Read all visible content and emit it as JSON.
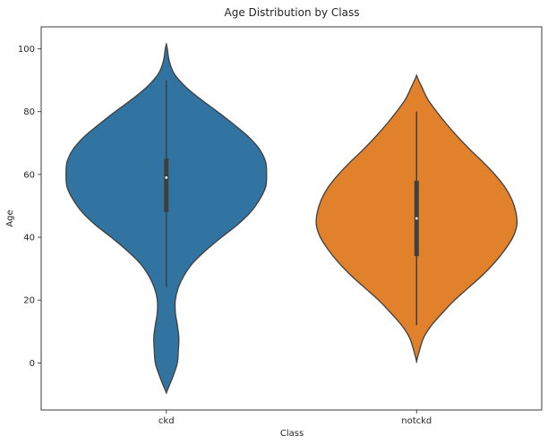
{
  "chart_data": {
    "type": "violin",
    "title": "Age Distribution by Class",
    "xlabel": "Class",
    "ylabel": "Age",
    "categories": [
      "ckd",
      "notckd"
    ],
    "ylim": [
      -15,
      107
    ],
    "yticks": [
      0,
      20,
      40,
      60,
      80,
      100
    ],
    "grid": false,
    "series": [
      {
        "category": "ckd",
        "color": "#3274a1",
        "kde_extent": [
          -9.5,
          101.5
        ],
        "kde_profile": [
          [
            -9.5,
            0.0
          ],
          [
            -8,
            0.02
          ],
          [
            -4,
            0.07
          ],
          [
            0,
            0.11
          ],
          [
            4,
            0.12
          ],
          [
            8,
            0.125
          ],
          [
            12,
            0.11
          ],
          [
            16,
            0.09
          ],
          [
            20,
            0.09
          ],
          [
            24,
            0.12
          ],
          [
            28,
            0.18
          ],
          [
            32,
            0.27
          ],
          [
            36,
            0.4
          ],
          [
            40,
            0.55
          ],
          [
            44,
            0.71
          ],
          [
            48,
            0.84
          ],
          [
            52,
            0.93
          ],
          [
            56,
            0.99
          ],
          [
            60,
            1.0
          ],
          [
            64,
            0.99
          ],
          [
            68,
            0.93
          ],
          [
            72,
            0.82
          ],
          [
            76,
            0.67
          ],
          [
            80,
            0.51
          ],
          [
            84,
            0.34
          ],
          [
            88,
            0.19
          ],
          [
            92,
            0.08
          ],
          [
            96,
            0.03
          ],
          [
            100,
            0.01
          ],
          [
            101.5,
            0.0
          ]
        ],
        "whisker_low": 24,
        "whisker_high": 90,
        "q1": 48,
        "q3": 65,
        "median": 59
      },
      {
        "category": "notckd",
        "color": "#e1812c",
        "kde_extent": [
          0.5,
          91.5
        ],
        "kde_profile": [
          [
            0.5,
            0.0
          ],
          [
            3,
            0.02
          ],
          [
            8,
            0.07
          ],
          [
            12,
            0.15
          ],
          [
            16,
            0.26
          ],
          [
            20,
            0.38
          ],
          [
            24,
            0.52
          ],
          [
            28,
            0.66
          ],
          [
            32,
            0.78
          ],
          [
            36,
            0.88
          ],
          [
            40,
            0.96
          ],
          [
            44,
            1.0
          ],
          [
            48,
            0.99
          ],
          [
            52,
            0.95
          ],
          [
            56,
            0.88
          ],
          [
            60,
            0.78
          ],
          [
            64,
            0.66
          ],
          [
            68,
            0.53
          ],
          [
            72,
            0.41
          ],
          [
            76,
            0.3
          ],
          [
            80,
            0.2
          ],
          [
            84,
            0.11
          ],
          [
            88,
            0.05
          ],
          [
            90,
            0.02
          ],
          [
            91.5,
            0.0
          ]
        ],
        "whisker_low": 12,
        "whisker_high": 80,
        "q1": 34,
        "q3": 58,
        "median": 46
      }
    ]
  }
}
